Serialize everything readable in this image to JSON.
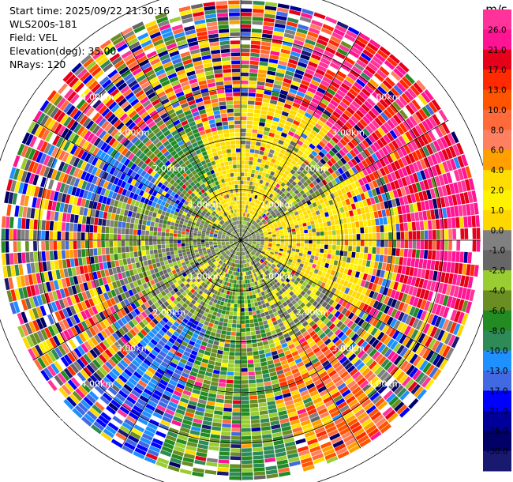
{
  "info": {
    "start_time": "Start time: 2025/09/22 21:30:16",
    "station": "WLS200s-181",
    "field": "Field: VEL",
    "elevation": "Elevation(deg): 35.00",
    "nrays": "NRays: 120"
  },
  "chart_data": {
    "type": "heatmap",
    "projection": "polar-ppi",
    "field": "VEL",
    "units": "m/s",
    "nrays": 120,
    "max_range_km": 5.3,
    "range_ring_labels": [
      "1.00km",
      "2.00km",
      "3.00km",
      "4.00km",
      "5.00km"
    ],
    "range_rings_km": [
      1,
      2,
      3,
      4,
      5
    ],
    "colorbar": {
      "title": "m/s",
      "ticks": [
        "26.0",
        "21.0",
        "17.0",
        "13.0",
        "10.0",
        "8.0",
        "6.0",
        "4.0",
        "2.0",
        "1.0",
        "0.0",
        "-1.0",
        "-2.0",
        "-4.0",
        "-6.0",
        "-8.0",
        "-10.0",
        "-13.0",
        "-17.0",
        "-21.0",
        "-26.0",
        "-30.0"
      ],
      "colors": [
        "#ff3399",
        "#ff1493",
        "#e6001a",
        "#ff2a00",
        "#ff5500",
        "#ff6a3a",
        "#ff8060",
        "#ffa000",
        "#ffdd00",
        "#fff200",
        "#ffd700",
        "#808080",
        "#666666",
        "#9acd32",
        "#6b8e23",
        "#228b22",
        "#2e8b57",
        "#1e90ff",
        "#4169e1",
        "#0000ff",
        "#000099",
        "#000066",
        "#191970"
      ]
    },
    "sectors": [
      {
        "az_from": 0,
        "az_to": 40,
        "range_km": [
          0.5,
          3.2
        ],
        "dominant": "2.0 to 4.0"
      },
      {
        "az_from": 20,
        "az_to": 65,
        "range_km": [
          3.0,
          5.3
        ],
        "dominant": "17.0 to 26.0"
      },
      {
        "az_from": 60,
        "az_to": 110,
        "range_km": [
          3.5,
          5.3
        ],
        "dominant": "21.0 to 26.0"
      },
      {
        "az_from": 60,
        "az_to": 120,
        "range_km": [
          0.5,
          3.0
        ],
        "dominant": "1.0 to 4.0"
      },
      {
        "az_from": 140,
        "az_to": 165,
        "range_km": [
          2.5,
          5.3
        ],
        "dominant": "2.0 to 13.0"
      },
      {
        "az_from": 165,
        "az_to": 200,
        "range_km": [
          0.5,
          5.3
        ],
        "dominant": "-8.0 to -2.0"
      },
      {
        "az_from": 200,
        "az_to": 225,
        "range_km": [
          2.0,
          5.3
        ],
        "dominant": "-17.0 to -13.0"
      },
      {
        "az_from": 240,
        "az_to": 290,
        "range_km": [
          0.5,
          3.0
        ],
        "dominant": "-4.0 to -1.0"
      },
      {
        "az_from": 285,
        "az_to": 305,
        "range_km": [
          1.5,
          3.8
        ],
        "dominant": "-17.0 to -13.0"
      },
      {
        "az_from": 310,
        "az_to": 340,
        "range_km": [
          1.2,
          3.2
        ],
        "dominant": "-8.0 to -4.0"
      },
      {
        "az_from": 320,
        "az_to": 360,
        "range_km": [
          0.5,
          2.5
        ],
        "dominant": "1.0 to 4.0"
      }
    ]
  }
}
